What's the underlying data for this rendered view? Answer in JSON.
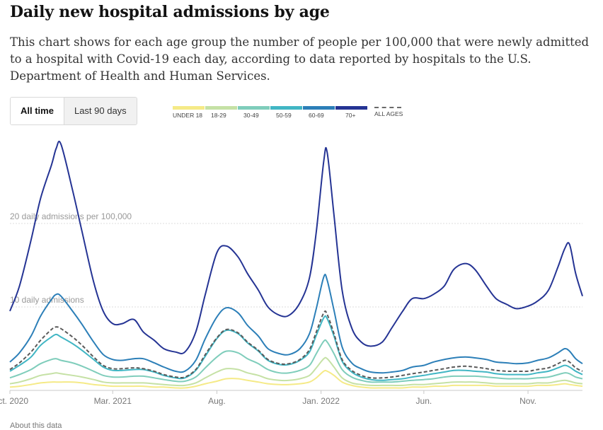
{
  "header": {
    "title": "Daily new hospital admissions by age",
    "subtitle": "This chart shows for each age group the number of people per 100,000 that were newly admitted to a hospital with Covid-19 each day, according to data reported by hospitals to the U.S. Department of Health and Human Services."
  },
  "toggle": {
    "all_time_label": "All time",
    "last_90_label": "Last 90 days",
    "selected": "All time"
  },
  "legend": {
    "items": [
      {
        "label": "UNDER 18",
        "color": "#f5ea87"
      },
      {
        "label": "18-29",
        "color": "#c5e1a5"
      },
      {
        "label": "30-49",
        "color": "#7fcdbb"
      },
      {
        "label": "50-59",
        "color": "#41b6c4"
      },
      {
        "label": "60-69",
        "color": "#2c7fb8"
      },
      {
        "label": "70+",
        "color": "#253494"
      }
    ],
    "all_ages_label": "ALL AGES",
    "all_ages_color": "#5a5a5a"
  },
  "footer": {
    "about_label": "About this data"
  },
  "chart_data": {
    "type": "line",
    "x": [
      "2020-10-01",
      "2020-10-15",
      "2020-11-01",
      "2020-11-15",
      "2020-12-01",
      "2020-12-08",
      "2020-12-15",
      "2021-01-01",
      "2021-01-15",
      "2021-02-01",
      "2021-02-15",
      "2021-03-01",
      "2021-03-15",
      "2021-04-01",
      "2021-04-15",
      "2021-05-01",
      "2021-05-15",
      "2021-06-01",
      "2021-06-15",
      "2021-07-01",
      "2021-07-15",
      "2021-08-01",
      "2021-08-15",
      "2021-09-01",
      "2021-09-15",
      "2021-10-01",
      "2021-10-15",
      "2021-11-01",
      "2021-11-15",
      "2021-12-01",
      "2021-12-15",
      "2021-12-25",
      "2022-01-05",
      "2022-01-10",
      "2022-01-20",
      "2022-02-01",
      "2022-02-15",
      "2022-03-01",
      "2022-03-15",
      "2022-04-01",
      "2022-04-15",
      "2022-05-01",
      "2022-05-15",
      "2022-06-01",
      "2022-06-15",
      "2022-07-01",
      "2022-07-15",
      "2022-08-01",
      "2022-08-15",
      "2022-09-01",
      "2022-09-15",
      "2022-10-01",
      "2022-10-15",
      "2022-11-01",
      "2022-11-15",
      "2022-12-01",
      "2022-12-15",
      "2022-12-25",
      "2023-01-01",
      "2023-01-10",
      "2023-01-20"
    ],
    "x_ticks": [
      {
        "label": "Oct. 2020",
        "date": "2020-10-01"
      },
      {
        "label": "Mar. 2021",
        "date": "2021-03-01"
      },
      {
        "label": "Aug.",
        "date": "2021-08-01"
      },
      {
        "label": "Jan. 2022",
        "date": "2022-01-01"
      },
      {
        "label": "Jun.",
        "date": "2022-06-01"
      },
      {
        "label": "Nov.",
        "date": "2022-11-01"
      }
    ],
    "y_gridlines": [
      {
        "value": 10,
        "label": "10 daily admissions"
      },
      {
        "value": 20,
        "label": "20 daily admissions per 100,000"
      }
    ],
    "ylim": [
      0,
      30
    ],
    "grid": true,
    "legend_position": "top",
    "series": [
      {
        "name": "UNDER 18",
        "color": "#f5ea87",
        "values": [
          0.4,
          0.5,
          0.7,
          0.9,
          1.0,
          1.0,
          1.0,
          1.0,
          0.9,
          0.7,
          0.6,
          0.5,
          0.5,
          0.5,
          0.5,
          0.4,
          0.4,
          0.3,
          0.3,
          0.5,
          0.8,
          1.1,
          1.4,
          1.4,
          1.2,
          1.0,
          0.8,
          0.7,
          0.7,
          0.8,
          1.0,
          1.5,
          2.3,
          2.3,
          1.8,
          1.0,
          0.6,
          0.4,
          0.3,
          0.3,
          0.3,
          0.3,
          0.4,
          0.4,
          0.5,
          0.5,
          0.6,
          0.6,
          0.6,
          0.6,
          0.5,
          0.5,
          0.5,
          0.5,
          0.6,
          0.6,
          0.7,
          0.8,
          0.7,
          0.6,
          0.5
        ]
      },
      {
        "name": "18-29",
        "color": "#c5e1a5",
        "values": [
          0.8,
          1.0,
          1.4,
          1.8,
          2.0,
          2.1,
          2.0,
          1.8,
          1.6,
          1.3,
          1.0,
          0.9,
          0.9,
          0.9,
          0.9,
          0.8,
          0.7,
          0.6,
          0.6,
          0.9,
          1.5,
          2.2,
          2.6,
          2.5,
          2.1,
          1.8,
          1.4,
          1.2,
          1.2,
          1.4,
          1.8,
          2.7,
          3.8,
          3.8,
          2.8,
          1.5,
          0.9,
          0.7,
          0.6,
          0.6,
          0.6,
          0.6,
          0.7,
          0.7,
          0.8,
          0.9,
          1.0,
          1.0,
          1.0,
          0.9,
          0.8,
          0.8,
          0.8,
          0.8,
          0.9,
          0.9,
          1.1,
          1.2,
          1.1,
          0.9,
          0.8
        ]
      },
      {
        "name": "30-49",
        "color": "#7fcdbb",
        "values": [
          1.5,
          1.9,
          2.5,
          3.2,
          3.7,
          3.8,
          3.6,
          3.3,
          2.9,
          2.3,
          1.8,
          1.6,
          1.6,
          1.7,
          1.7,
          1.5,
          1.3,
          1.1,
          1.1,
          1.6,
          2.7,
          4.0,
          4.7,
          4.5,
          3.8,
          3.2,
          2.5,
          2.1,
          2.1,
          2.4,
          3.0,
          4.4,
          5.9,
          5.8,
          4.4,
          2.5,
          1.6,
          1.2,
          1.0,
          1.0,
          1.0,
          1.1,
          1.2,
          1.3,
          1.4,
          1.6,
          1.7,
          1.7,
          1.7,
          1.6,
          1.5,
          1.4,
          1.4,
          1.4,
          1.5,
          1.6,
          1.9,
          2.1,
          2.0,
          1.6,
          1.4
        ]
      },
      {
        "name": "50-59",
        "color": "#41b6c4",
        "values": [
          2.3,
          3.0,
          4.0,
          5.4,
          6.4,
          6.7,
          6.4,
          5.6,
          4.8,
          3.7,
          2.8,
          2.4,
          2.4,
          2.5,
          2.5,
          2.2,
          1.8,
          1.5,
          1.5,
          2.4,
          4.1,
          6.2,
          7.2,
          6.8,
          5.7,
          4.7,
          3.6,
          3.1,
          3.1,
          3.6,
          4.6,
          6.6,
          8.7,
          8.6,
          6.5,
          3.5,
          2.2,
          1.6,
          1.3,
          1.2,
          1.3,
          1.4,
          1.6,
          1.8,
          2.0,
          2.2,
          2.4,
          2.4,
          2.3,
          2.2,
          2.0,
          1.9,
          1.9,
          1.9,
          2.1,
          2.3,
          2.7,
          3.0,
          2.8,
          2.3,
          1.9
        ]
      },
      {
        "name": "60-69",
        "color": "#2c7fb8",
        "values": [
          3.4,
          4.5,
          6.5,
          8.9,
          10.9,
          11.5,
          11.3,
          9.5,
          7.9,
          5.8,
          4.3,
          3.7,
          3.6,
          3.8,
          3.8,
          3.3,
          2.8,
          2.3,
          2.3,
          3.6,
          6.2,
          8.8,
          9.9,
          9.3,
          7.8,
          6.5,
          5.0,
          4.4,
          4.3,
          5.0,
          6.8,
          9.8,
          13.6,
          13.2,
          9.6,
          5.2,
          3.3,
          2.6,
          2.2,
          2.1,
          2.2,
          2.4,
          2.8,
          3.0,
          3.4,
          3.7,
          3.9,
          4.0,
          3.9,
          3.7,
          3.4,
          3.3,
          3.2,
          3.3,
          3.6,
          3.9,
          4.5,
          5.0,
          4.7,
          3.8,
          3.2
        ]
      },
      {
        "name": "70+",
        "color": "#253494",
        "values": [
          9.5,
          12.5,
          18.0,
          23.0,
          27.0,
          29.0,
          29.5,
          24.0,
          19.0,
          13.0,
          9.5,
          8.0,
          8.0,
          8.5,
          7.0,
          6.0,
          5.0,
          4.6,
          4.6,
          7.0,
          11.5,
          16.5,
          17.3,
          16.0,
          14.0,
          12.0,
          10.0,
          9.0,
          9.0,
          10.5,
          13.5,
          19.0,
          27.5,
          28.5,
          21.0,
          12.0,
          7.5,
          5.8,
          5.3,
          5.8,
          7.5,
          9.5,
          11.0,
          11.0,
          11.5,
          12.5,
          14.5,
          15.2,
          14.5,
          12.5,
          11.0,
          10.3,
          9.8,
          10.1,
          10.7,
          12.0,
          14.8,
          17.0,
          17.5,
          14.0,
          11.3
        ]
      },
      {
        "name": "ALL AGES",
        "color": "#5a5a5a",
        "dashed": true,
        "values": [
          2.5,
          3.3,
          4.6,
          6.0,
          7.3,
          7.6,
          7.4,
          6.4,
          5.4,
          4.0,
          3.0,
          2.6,
          2.6,
          2.7,
          2.6,
          2.3,
          1.9,
          1.6,
          1.6,
          2.5,
          4.3,
          6.3,
          7.3,
          6.9,
          5.8,
          4.8,
          3.7,
          3.2,
          3.2,
          3.7,
          4.9,
          7.0,
          9.3,
          9.1,
          6.8,
          3.7,
          2.4,
          1.8,
          1.5,
          1.5,
          1.6,
          1.8,
          2.0,
          2.2,
          2.4,
          2.6,
          2.8,
          2.9,
          2.8,
          2.6,
          2.4,
          2.3,
          2.3,
          2.3,
          2.5,
          2.7,
          3.2,
          3.6,
          3.4,
          2.7,
          2.3
        ]
      }
    ]
  }
}
